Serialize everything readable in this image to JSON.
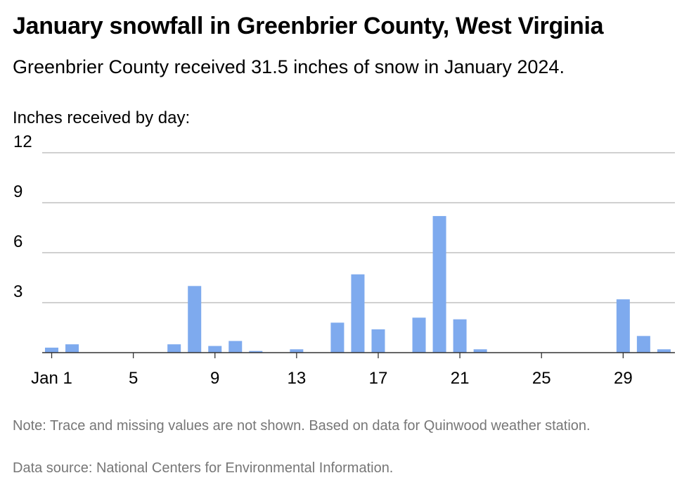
{
  "header": {
    "title": "January snowfall in Greenbrier County, West Virginia",
    "subtitle": "Greenbrier County received 31.5 inches of snow in January 2024."
  },
  "footer": {
    "note": "Note: Trace and missing values are not shown. Based on data for Quinwood weather station.",
    "source": "Data source: National Centers for Environmental Information."
  },
  "colors": {
    "bar": "#7eaaee",
    "grid": "#b3b3b3",
    "axis": "#333333",
    "footer_text": "#777777"
  },
  "chart_data": {
    "type": "bar",
    "title": "January snowfall in Greenbrier County, West Virginia",
    "subtitle": "Greenbrier County received 31.5 inches of snow in January 2024.",
    "ylabel": "Inches received by day:",
    "xlabel": "",
    "ylim": [
      0,
      12
    ],
    "yticks": [
      3,
      6,
      9,
      12
    ],
    "grid": true,
    "x_tick_labels": [
      {
        "day": 1,
        "label": "Jan 1"
      },
      {
        "day": 5,
        "label": "5"
      },
      {
        "day": 9,
        "label": "9"
      },
      {
        "day": 13,
        "label": "13"
      },
      {
        "day": 17,
        "label": "17"
      },
      {
        "day": 21,
        "label": "21"
      },
      {
        "day": 25,
        "label": "25"
      },
      {
        "day": 29,
        "label": "29"
      }
    ],
    "days": [
      1,
      2,
      3,
      4,
      5,
      6,
      7,
      8,
      9,
      10,
      11,
      12,
      13,
      14,
      15,
      16,
      17,
      18,
      19,
      20,
      21,
      22,
      23,
      24,
      25,
      26,
      27,
      28,
      29,
      30,
      31
    ],
    "values": [
      0.3,
      0.5,
      0,
      0,
      0,
      0,
      0.5,
      4.0,
      0.4,
      0.7,
      0.1,
      0,
      0.2,
      0,
      1.8,
      4.7,
      1.4,
      0,
      2.1,
      8.2,
      2.0,
      0.2,
      0,
      0,
      0,
      0,
      0,
      0,
      3.2,
      1.0,
      0.2
    ]
  }
}
